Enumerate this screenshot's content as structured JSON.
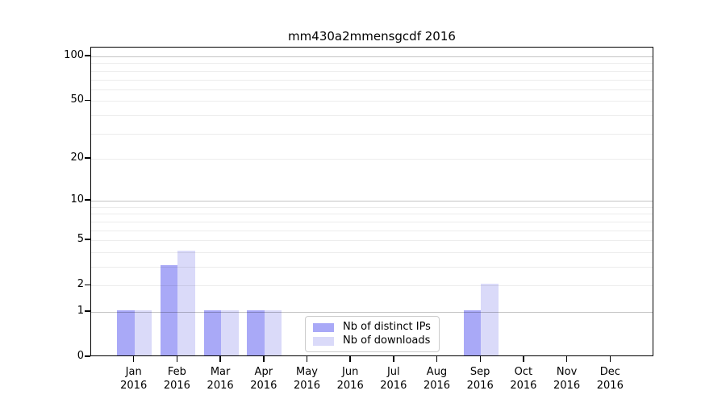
{
  "title": "mm430a2mmensgcdf 2016",
  "chart_data": {
    "type": "bar",
    "title": "mm430a2mmensgcdf 2016",
    "categories": [
      "Jan 2016",
      "Feb 2016",
      "Mar 2016",
      "Apr 2016",
      "May 2016",
      "Jun 2016",
      "Jul 2016",
      "Aug 2016",
      "Sep 2016",
      "Oct 2016",
      "Nov 2016",
      "Dec 2016"
    ],
    "months": [
      "Jan",
      "Feb",
      "Mar",
      "Apr",
      "May",
      "Jun",
      "Jul",
      "Aug",
      "Sep",
      "Oct",
      "Nov",
      "Dec"
    ],
    "year": "2016",
    "series": [
      {
        "name": "Nb of distinct IPs",
        "color": "#a9a9f7",
        "values": [
          1,
          3,
          1,
          1,
          0,
          0,
          0,
          0,
          1,
          0,
          0,
          0
        ]
      },
      {
        "name": "Nb of downloads",
        "color": "#dadaf9",
        "values": [
          1,
          4,
          1,
          1,
          0,
          0,
          0,
          0,
          2,
          0,
          0,
          0
        ]
      }
    ],
    "yscale": "log1p",
    "ylim": [
      0,
      115
    ],
    "y_ticks": [
      0,
      1,
      2,
      5,
      10,
      20,
      50,
      100
    ],
    "grid_major": [
      1,
      10,
      100
    ],
    "grid_minor": [
      2,
      3,
      4,
      5,
      6,
      7,
      8,
      9,
      20,
      30,
      40,
      50,
      60,
      70,
      80,
      90
    ],
    "grid": true,
    "legend_position": "lower center",
    "axis_color": "#000000",
    "background_color": "#ffffff"
  }
}
